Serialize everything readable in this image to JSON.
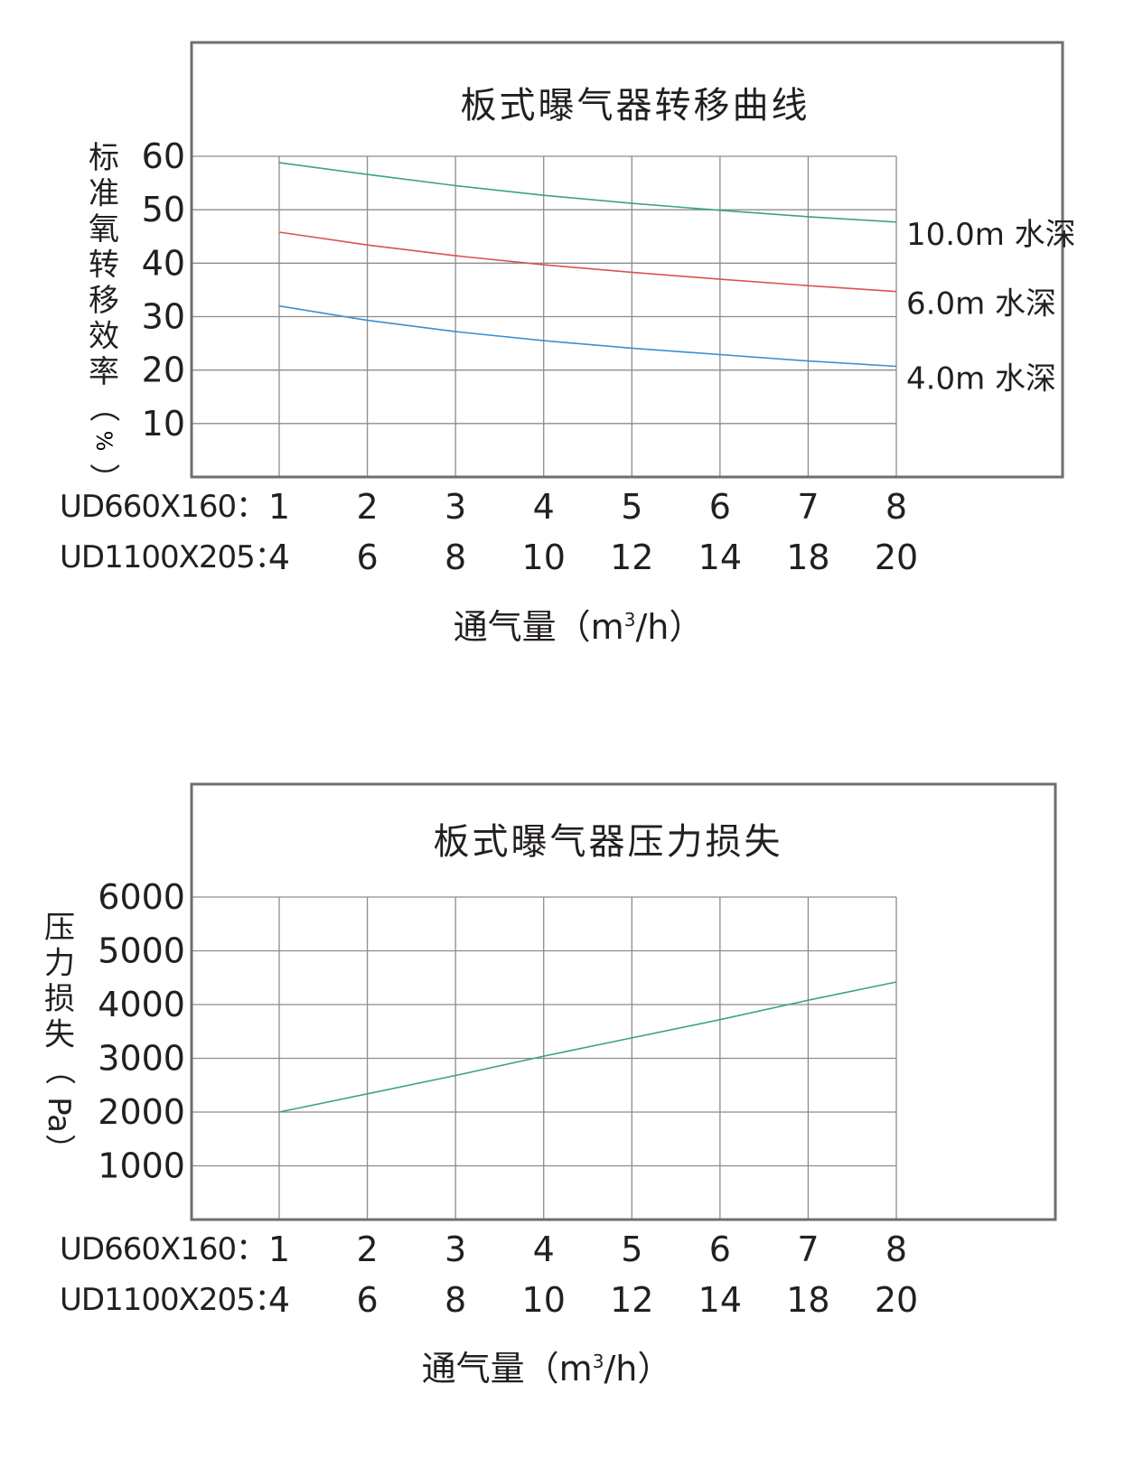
{
  "chart_data": [
    {
      "type": "line",
      "title": "板式曝气器转移曲线",
      "ylabel": "标准氧转移效率（%）",
      "xlabel": "通气量（m³/h）",
      "xlabel_parts": {
        "text": "通气量（m",
        "sup": "3",
        "tail": "/h）"
      },
      "y_ticks": [
        "60",
        "50",
        "40",
        "30",
        "20",
        "10"
      ],
      "ylim": [
        0,
        60
      ],
      "x_rows": [
        {
          "label": "UD660X160：",
          "ticks": [
            "1",
            "2",
            "3",
            "4",
            "5",
            "6",
            "7",
            "8"
          ]
        },
        {
          "label": "UD1100X205：",
          "ticks": [
            "4",
            "6",
            "8",
            "10",
            "12",
            "14",
            "18",
            "20"
          ]
        }
      ],
      "x": [
        1,
        2,
        3,
        4,
        5,
        6,
        7,
        8
      ],
      "series": [
        {
          "name": "10.0m 水深",
          "color": "#3aa57a",
          "values": [
            58.8,
            56.6,
            54.5,
            52.7,
            51.2,
            49.9,
            48.7,
            47.7
          ]
        },
        {
          "name": "6.0m  水深",
          "color": "#d9534f",
          "values": [
            45.8,
            43.4,
            41.4,
            39.7,
            38.3,
            37.0,
            35.8,
            34.7
          ]
        },
        {
          "name": "4.0m  水深",
          "color": "#3b8fd0",
          "values": [
            32.0,
            29.3,
            27.2,
            25.5,
            24.1,
            22.9,
            21.7,
            20.7
          ]
        }
      ],
      "grid": true
    },
    {
      "type": "line",
      "title": "板式曝气器压力损失",
      "ylabel": "压力损失（Pa）",
      "xlabel": "通气量（m³/h）",
      "xlabel_parts": {
        "text": "通气量（m",
        "sup": "3",
        "tail": "/h）"
      },
      "y_ticks": [
        "6000",
        "5000",
        "4000",
        "3000",
        "2000",
        "1000"
      ],
      "ylim": [
        0,
        6000
      ],
      "x_rows": [
        {
          "label": "UD660X160：",
          "ticks": [
            "1",
            "2",
            "3",
            "4",
            "5",
            "6",
            "7",
            "8"
          ]
        },
        {
          "label": "UD1100X205：",
          "ticks": [
            "4",
            "6",
            "8",
            "10",
            "12",
            "14",
            "18",
            "20"
          ]
        }
      ],
      "x": [
        1,
        2,
        3,
        4,
        5,
        6,
        7,
        8
      ],
      "series": [
        {
          "color": "#3aa57a",
          "values": [
            2000,
            2340,
            2680,
            3040,
            3380,
            3720,
            4080,
            4420
          ]
        }
      ],
      "grid": true
    }
  ]
}
